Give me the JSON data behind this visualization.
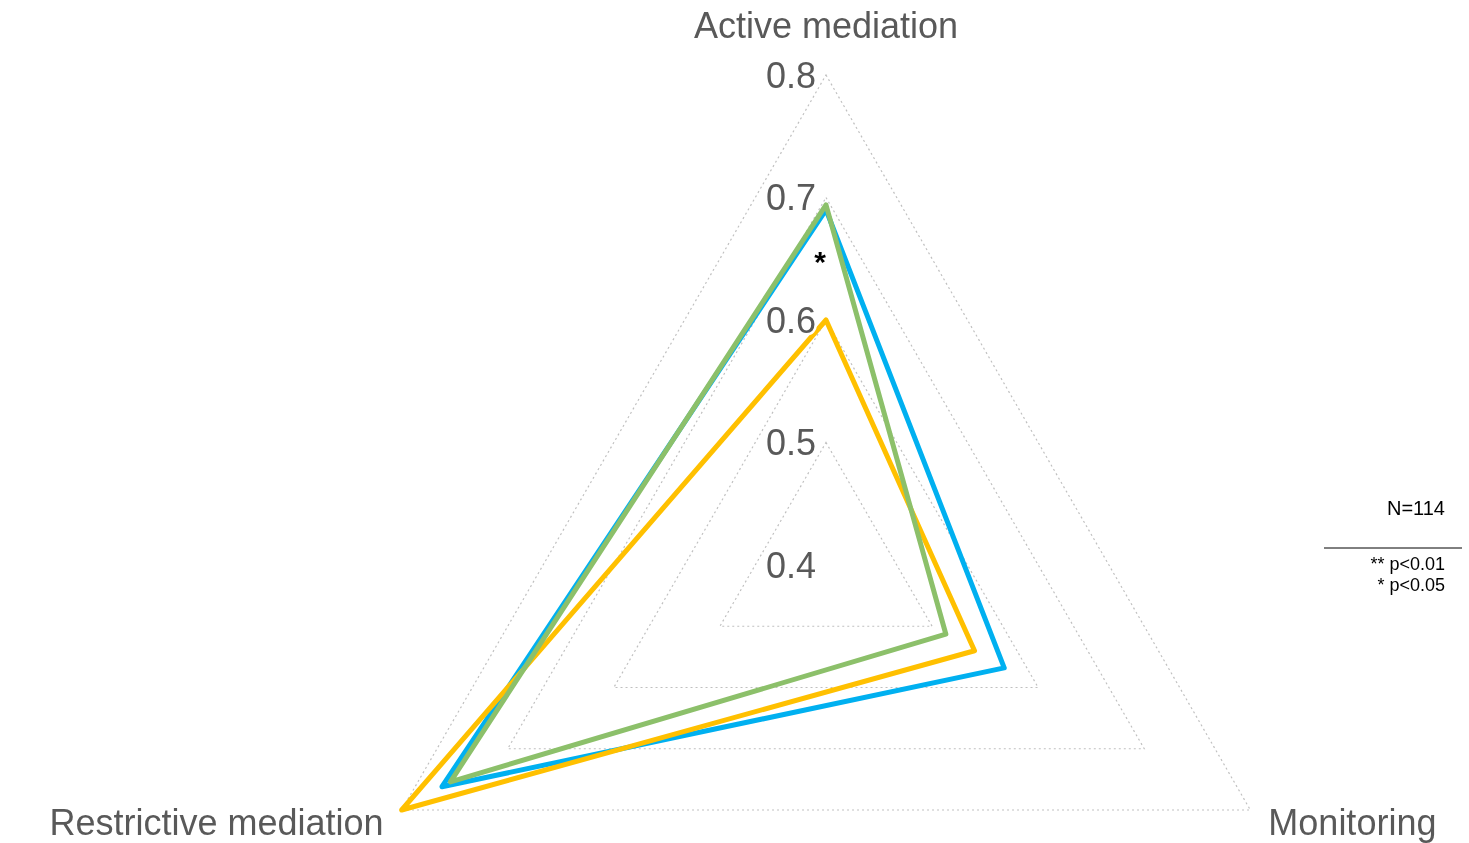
{
  "chart_data": {
    "type": "radar",
    "categories": [
      "Active mediation",
      "Monitoring",
      "Restrictive mediation"
    ],
    "series": [
      {
        "color": "#00b0f0",
        "values": [
          0.69,
          0.568,
          0.762
        ]
      },
      {
        "color": "#ffc000",
        "values": [
          0.6,
          0.54,
          0.8
        ]
      },
      {
        "color": "#8cc06a",
        "values": [
          0.694,
          0.513,
          0.754
        ]
      }
    ],
    "ylim": [
      0.4,
      0.8
    ],
    "yticks": [
      0.4,
      0.5,
      0.6,
      0.7,
      0.8
    ],
    "grid": true,
    "annotations": [
      {
        "text": "*",
        "x": "Active mediation"
      },
      "N=114",
      "** p<0.01",
      "* p<0.05"
    ]
  }
}
